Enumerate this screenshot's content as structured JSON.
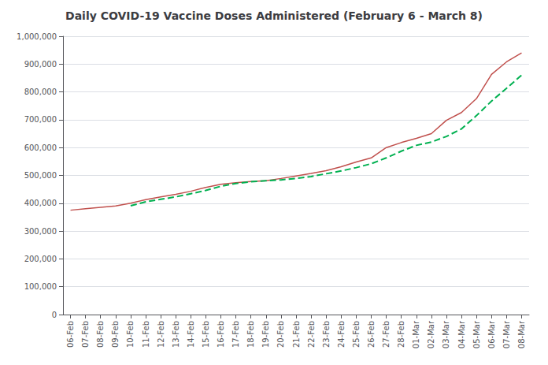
{
  "chart_data": {
    "type": "line",
    "title": "Daily COVID-19 Vaccine Doses Administered (February 6 - March 8)",
    "categories": [
      "06-Feb",
      "07-Feb",
      "08-Feb",
      "09-Feb",
      "10-Feb",
      "11-Feb",
      "12-Feb",
      "13-Feb",
      "14-Feb",
      "15-Feb",
      "16-Feb",
      "17-Feb",
      "18-Feb",
      "19-Feb",
      "20-Feb",
      "21-Feb",
      "22-Feb",
      "23-Feb",
      "24-Feb",
      "25-Feb",
      "26-Feb",
      "27-Feb",
      "28-Feb",
      "01-Mar",
      "02-Mar",
      "03-Mar",
      "04-Mar",
      "05-Mar",
      "06-Mar",
      "07-Mar",
      "08-Mar"
    ],
    "series": [
      {
        "color": "#c0504d",
        "line_style": "solid",
        "values": [
          375000,
          380000,
          385000,
          390000,
          400000,
          413000,
          423000,
          432000,
          443000,
          457000,
          468000,
          474000,
          478000,
          481000,
          489000,
          498000,
          507000,
          517000,
          531000,
          548000,
          563000,
          600000,
          618000,
          633000,
          650000,
          698000,
          726000,
          776000,
          863000,
          908000,
          940000
        ]
      },
      {
        "color": "#00b050",
        "line_style": "dashed",
        "values": [
          null,
          null,
          null,
          null,
          391000,
          405000,
          414000,
          423000,
          434000,
          446000,
          461000,
          471000,
          477000,
          481000,
          484000,
          489000,
          496000,
          506000,
          516000,
          528000,
          542000,
          563000,
          587000,
          608000,
          620000,
          640000,
          667000,
          715000,
          767000,
          813000,
          860000
        ]
      }
    ],
    "ylim": [
      0,
      1000000
    ],
    "yticks": [
      0,
      {
        "value": 100000,
        "label": "100,000"
      },
      {
        "value": 200000,
        "label": "200,000"
      },
      {
        "value": 300000,
        "label": "300,000"
      },
      {
        "value": 400000,
        "label": "400,000"
      },
      {
        "value": 500000,
        "label": "500,000"
      },
      {
        "value": 600000,
        "label": "600,000"
      },
      {
        "value": 700000,
        "label": "700,000"
      },
      {
        "value": 800000,
        "label": "800,000"
      },
      {
        "value": 900000,
        "label": "900,000"
      },
      {
        "value": 1000000,
        "label": "1,000,000"
      }
    ],
    "grid": true
  }
}
